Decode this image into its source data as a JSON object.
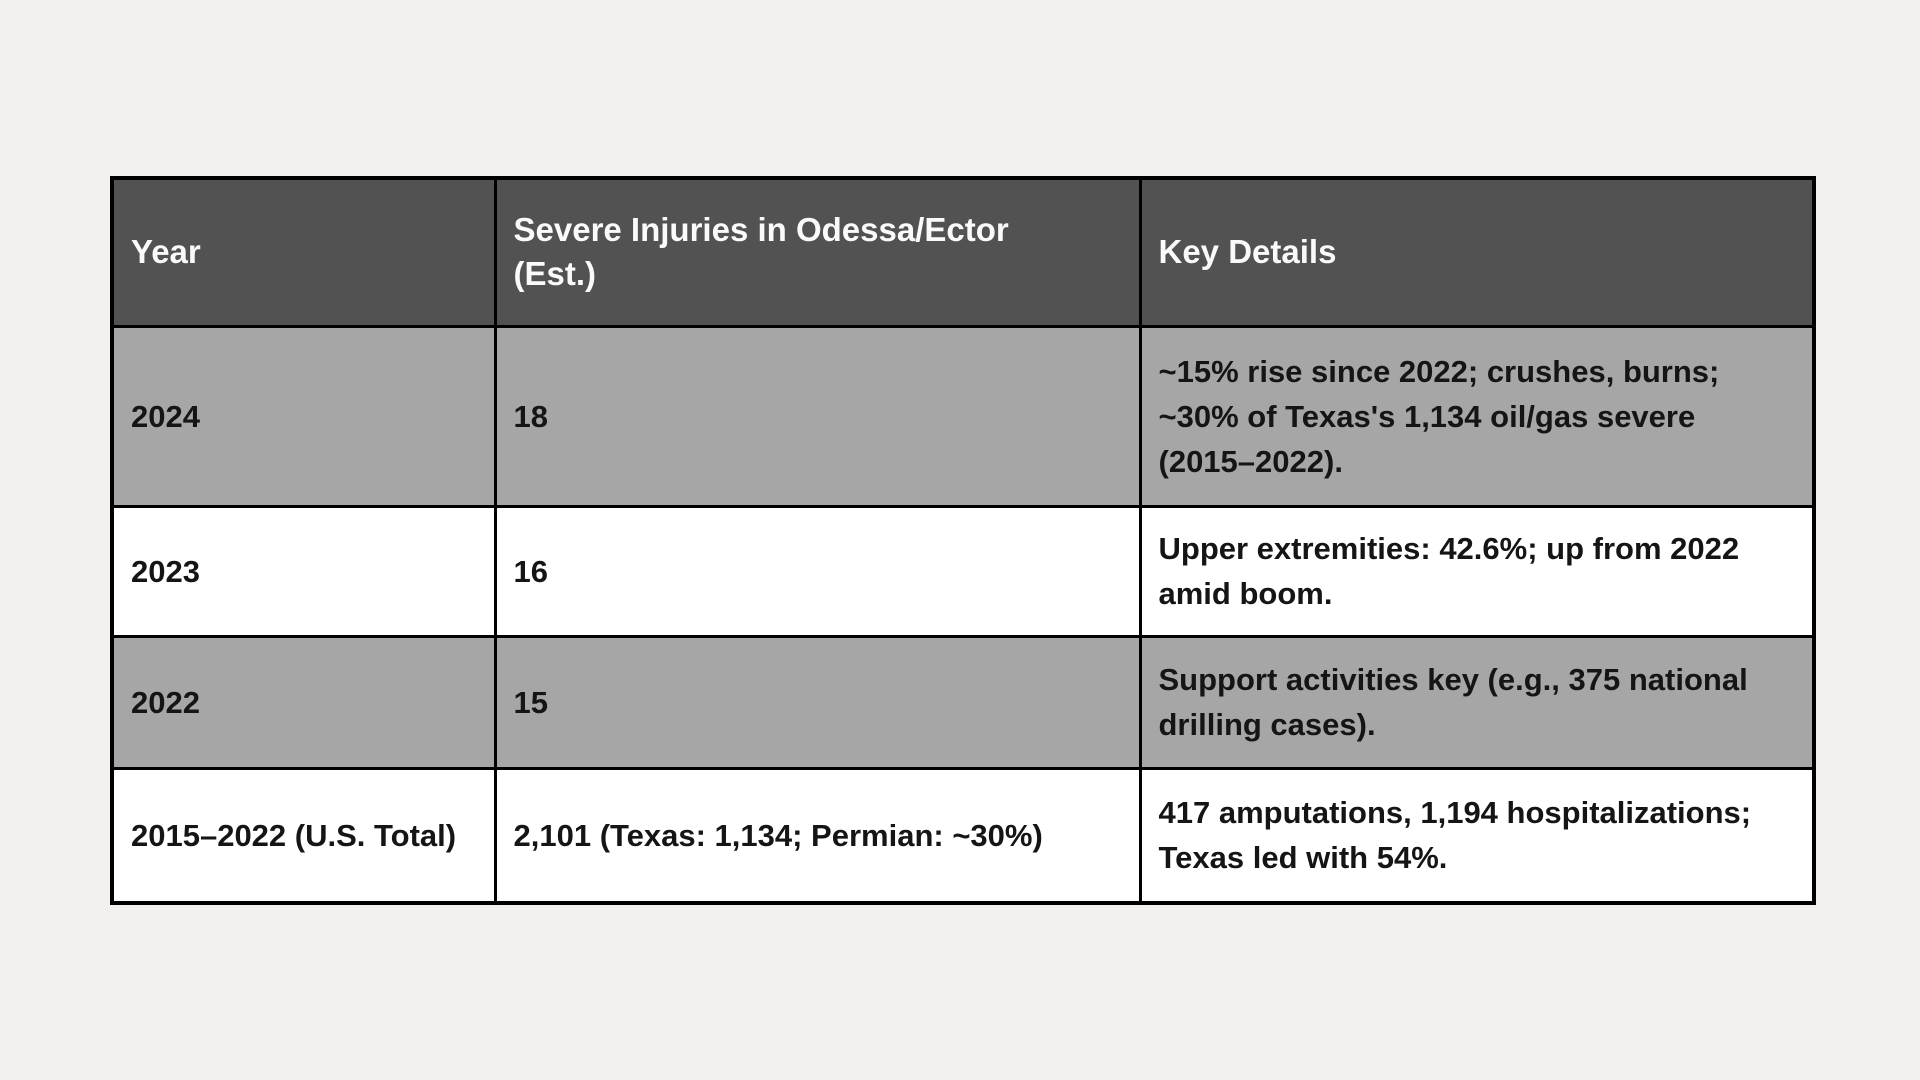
{
  "colors": {
    "page_background": "#f2f1ee",
    "header_background": "#525252",
    "header_text": "#fafafa",
    "alt_row_background": "#a6a6a6",
    "plain_row_background": "#ffffff",
    "body_text": "#151515",
    "border": "#000000"
  },
  "chart_data": {
    "type": "table",
    "columns": [
      "Year",
      "Severe Injuries in Odessa/Ector (Est.)",
      "Key Details"
    ],
    "rows": [
      [
        "2024",
        "18",
        "~15% rise since 2022; crushes, burns; ~30% of Texas's 1,134 oil/gas severe (2015–2022)."
      ],
      [
        "2023",
        "16",
        "Upper extremities: 42.6%; up from 2022 amid boom."
      ],
      [
        "2022",
        "15",
        "Support activities key (e.g., 375 national drilling cases)."
      ],
      [
        "2015–2022 (U.S. Total)",
        "2,101 (Texas: 1,134; Permian: ~30%)",
        "417 amputations, 1,194 hospitalizations; Texas led with 54%."
      ]
    ]
  }
}
